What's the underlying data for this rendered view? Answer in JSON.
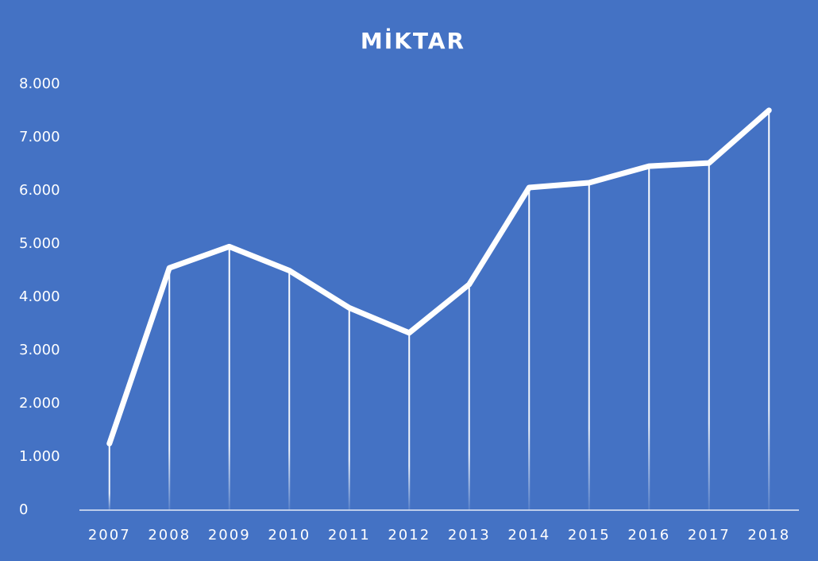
{
  "chart_data": {
    "type": "line",
    "title": "MİKTAR",
    "categories": [
      "2007",
      "2008",
      "2009",
      "2010",
      "2011",
      "2012",
      "2013",
      "2014",
      "2015",
      "2016",
      "2017",
      "2018"
    ],
    "values": [
      1250,
      4550,
      4950,
      4500,
      3800,
      3330,
      4240,
      6060,
      6150,
      6460,
      6520,
      7510
    ],
    "color": "#ffffff",
    "ylim": [
      0,
      8000
    ],
    "yticks": [
      0,
      {
        "value": 1000,
        "label": "1.000"
      },
      {
        "value": 2000,
        "label": "2.000"
      },
      {
        "value": 3000,
        "label": "3.000"
      },
      {
        "value": 4000,
        "label": "4.000"
      },
      {
        "value": 5000,
        "label": "5.000"
      },
      {
        "value": 6000,
        "label": "6.000"
      },
      {
        "value": 7000,
        "label": "7.000"
      },
      {
        "value": 8000,
        "label": "8.000"
      }
    ],
    "grid": false,
    "drop_lines": true
  }
}
